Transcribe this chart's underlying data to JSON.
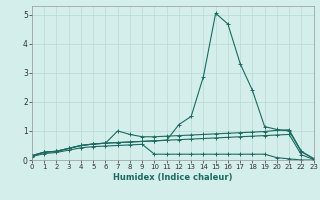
{
  "xlabel": "Humidex (Indice chaleur)",
  "bg_color": "#d4eeeb",
  "line_color": "#1a6b60",
  "grid_color": "#b8d8d4",
  "xlim": [
    0,
    23
  ],
  "ylim": [
    0,
    5.3
  ],
  "xticks": [
    0,
    1,
    2,
    3,
    4,
    5,
    6,
    7,
    8,
    9,
    10,
    11,
    12,
    13,
    14,
    15,
    16,
    17,
    18,
    19,
    20,
    21,
    22,
    23
  ],
  "yticks": [
    0,
    1,
    2,
    3,
    4,
    5
  ],
  "y_main": [
    0.15,
    0.27,
    0.3,
    0.4,
    0.5,
    0.55,
    0.58,
    0.6,
    0.62,
    0.64,
    0.66,
    0.68,
    1.22,
    1.5,
    2.87,
    5.05,
    4.68,
    3.32,
    2.4,
    1.15,
    1.05,
    1.0,
    0.28,
    0.05
  ],
  "y_upper": [
    0.15,
    0.27,
    0.3,
    0.4,
    0.5,
    0.55,
    0.58,
    1.0,
    0.88,
    0.8,
    0.8,
    0.82,
    0.84,
    0.86,
    0.88,
    0.9,
    0.92,
    0.94,
    0.96,
    0.98,
    1.02,
    1.04,
    0.3,
    0.05
  ],
  "y_mid": [
    0.15,
    0.27,
    0.3,
    0.4,
    0.5,
    0.55,
    0.58,
    0.6,
    0.62,
    0.64,
    0.66,
    0.68,
    0.7,
    0.72,
    0.74,
    0.76,
    0.78,
    0.8,
    0.82,
    0.84,
    0.86,
    0.88,
    0.18,
    0.02
  ],
  "y_low": [
    0.12,
    0.22,
    0.26,
    0.34,
    0.42,
    0.46,
    0.48,
    0.5,
    0.52,
    0.54,
    0.2,
    0.2,
    0.2,
    0.2,
    0.2,
    0.2,
    0.2,
    0.2,
    0.2,
    0.2,
    0.08,
    0.04,
    0.0,
    0.0
  ],
  "figsize": [
    3.2,
    2.0
  ],
  "dpi": 100
}
